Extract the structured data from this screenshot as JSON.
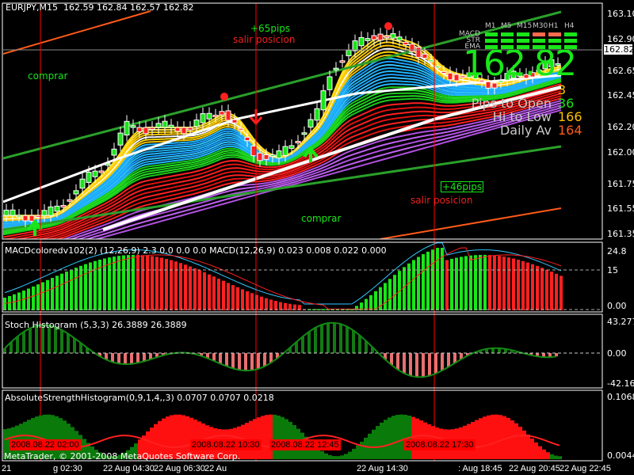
{
  "chart_header": {
    "symbol": "EURJPY,M15",
    "open": "162.59",
    "high": "162.84",
    "low": "162.57",
    "close": "162.82"
  },
  "current_price_tag": "162.82",
  "big_price": "162.82",
  "price_axis": [
    "163.10",
    "162.90",
    "162.65",
    "162.45",
    "162.20",
    "162.00",
    "161.75",
    "161.55",
    "161.35"
  ],
  "price_path": [
    [
      10,
      161.5
    ],
    [
      60,
      161.5
    ],
    [
      130,
      161.9
    ],
    [
      160,
      162.2
    ],
    [
      240,
      162.2
    ],
    [
      280,
      162.35
    ],
    [
      320,
      162.0
    ],
    [
      350,
      161.95
    ],
    [
      400,
      162.3
    ],
    [
      420,
      162.7
    ],
    [
      470,
      162.95
    ],
    [
      520,
      162.85
    ],
    [
      550,
      162.65
    ],
    [
      620,
      162.55
    ],
    [
      700,
      162.7
    ]
  ],
  "annotations": {
    "comprar_1": "comprar",
    "comprar_2": "comprar",
    "pips_1": "+65pips",
    "salir_1": "salir posicion",
    "pips_2": "+46pips",
    "salir_2": "salir posicion"
  },
  "signal_table": {
    "timeframes": [
      "M1",
      "M5",
      "M15",
      "M30",
      "H1",
      "H4"
    ],
    "rows": [
      {
        "label": "MACD",
        "states": [
          "up",
          "up",
          "up",
          "down",
          "down",
          "up"
        ]
      },
      {
        "label": "STR",
        "states": [
          "up",
          "up",
          "up",
          "up",
          "up",
          "up"
        ]
      },
      {
        "label": "EMA",
        "states": [
          "up",
          "up",
          "up",
          "up",
          "up",
          "up"
        ]
      }
    ],
    "colors": {
      "up": "#19e619",
      "down": "#ff6a4d"
    }
  },
  "stats": [
    {
      "label": "",
      "value": "3",
      "color": "#ffc000"
    },
    {
      "label": "Pips to Open",
      "value": "36",
      "color": "#19e619"
    },
    {
      "label": "Hi to Low",
      "value": "166",
      "color": "#ffc000"
    },
    {
      "label": "Daily Av",
      "value": "164",
      "color": "#ff5a1a"
    }
  ],
  "macd_panel": {
    "title": "MACDcoloredv102(2) (12,26,9) 2.3 0.0 0.0 0.0  MACD(12,26,9) 0.023 0.008 0.022 0.000",
    "axis": [
      "24.8",
      "15",
      "0.00"
    ]
  },
  "stoch_panel": {
    "title": "Stoch Histogram (5,3,3) 26.3889 26.3889",
    "axis": [
      "43.2777",
      "0.00",
      "-42.165"
    ]
  },
  "ash_panel": {
    "title": "AbsoluteStrengthHistogram(0,9,1,4,,3) 0.0707 0.0707 0.0218",
    "axis": [
      "0.1068",
      "0.0044"
    ]
  },
  "copyright": "MetaTrader, © 2001-2008 MetaQuotes Software Corp.",
  "time_axis": [
    "21",
    "g 02:30",
    "22 Aug 04:30",
    "22 Aug 06:30",
    "22 Au",
    "22 Aug 14:30",
    ": Aug 18:45",
    "22 Aug 20:45",
    "22 Aug 22:45"
  ],
  "time_markers": [
    "2008.08.22 02:00",
    "2008.08.22 10:30",
    "2008.08.22 12:45",
    "2008.08.22 17:30"
  ]
}
